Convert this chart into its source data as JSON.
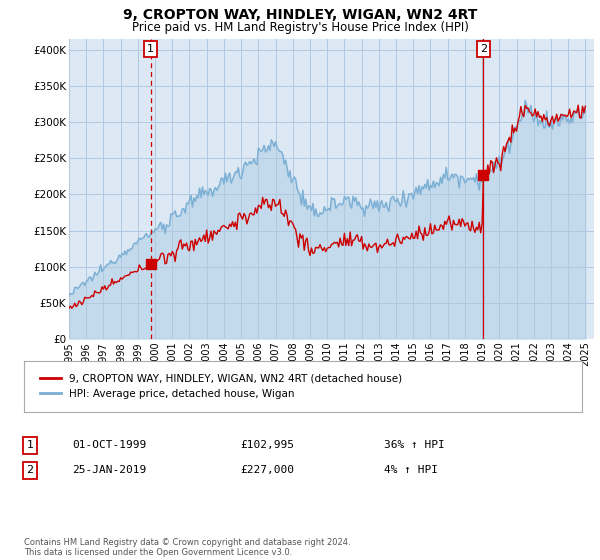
{
  "title": "9, CROPTON WAY, HINDLEY, WIGAN, WN2 4RT",
  "subtitle": "Price paid vs. HM Land Registry's House Price Index (HPI)",
  "title_fontsize": 10,
  "subtitle_fontsize": 8.5,
  "ylabel_ticks": [
    "£0",
    "£50K",
    "£100K",
    "£150K",
    "£200K",
    "£250K",
    "£300K",
    "£350K",
    "£400K"
  ],
  "ytick_values": [
    0,
    50000,
    100000,
    150000,
    200000,
    250000,
    300000,
    350000,
    400000
  ],
  "ylim": [
    0,
    415000
  ],
  "xlim_start": 1995.0,
  "xlim_end": 2025.5,
  "sale1_x": 1999.75,
  "sale1_y": 102995,
  "sale1_label": "1",
  "sale1_date": "01-OCT-1999",
  "sale1_price": "£102,995",
  "sale1_hpi": "36% ↑ HPI",
  "sale2_x": 2019.07,
  "sale2_y": 227000,
  "sale2_label": "2",
  "sale2_date": "25-JAN-2019",
  "sale2_price": "£227,000",
  "sale2_hpi": "4% ↑ HPI",
  "hpi_color": "#7bafd4",
  "price_color": "#cc0000",
  "vline1_color": "#cc0000",
  "vline2_color": "#cc0000",
  "background_color": "#ffffff",
  "plot_bg_color": "#dce9f5",
  "grid_color": "#b0c8e0",
  "legend_label_price": "9, CROPTON WAY, HINDLEY, WIGAN, WN2 4RT (detached house)",
  "legend_label_hpi": "HPI: Average price, detached house, Wigan",
  "footer": "Contains HM Land Registry data © Crown copyright and database right 2024.\nThis data is licensed under the Open Government Licence v3.0.",
  "xtick_years": [
    1995,
    1996,
    1997,
    1998,
    1999,
    2000,
    2001,
    2002,
    2003,
    2004,
    2005,
    2006,
    2007,
    2008,
    2009,
    2010,
    2011,
    2012,
    2013,
    2014,
    2015,
    2016,
    2017,
    2018,
    2019,
    2020,
    2021,
    2022,
    2023,
    2024,
    2025
  ]
}
